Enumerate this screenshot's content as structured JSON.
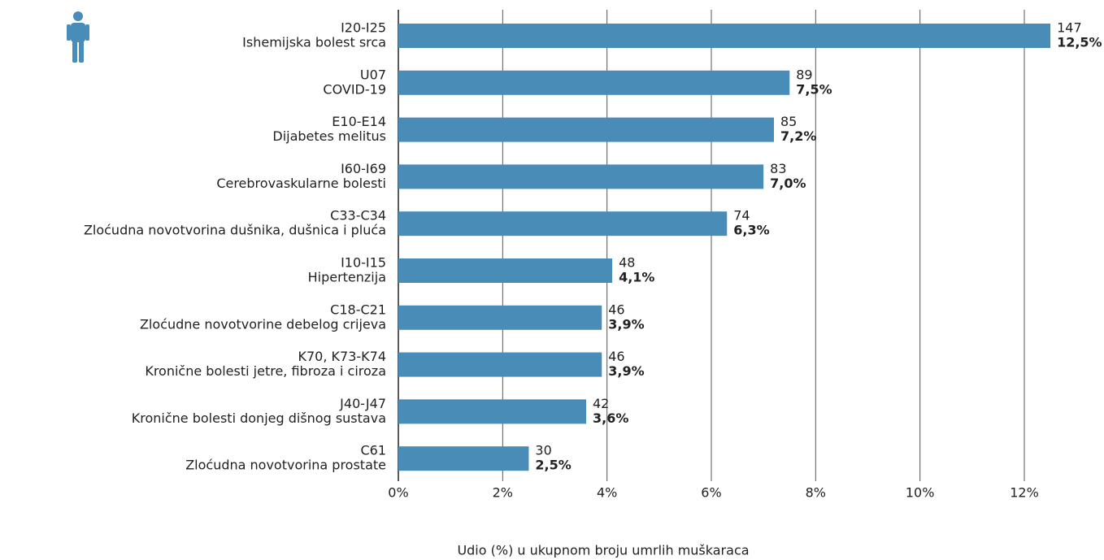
{
  "chart_data": {
    "type": "bar",
    "orientation": "horizontal",
    "xlabel": "Udio (%) u ukupnom broju umrlih muškaraca",
    "categories": [
      [
        "I20-I25",
        "Ishemijska bolest srca"
      ],
      [
        "U07",
        "COVID-19"
      ],
      [
        "E10-E14",
        "Dijabetes melitus"
      ],
      [
        "I60-I69",
        "Cerebrovaskularne bolesti"
      ],
      [
        "C33-C34",
        "Zloćudna novotvorina dušnika, dušnica i pluća"
      ],
      [
        "I10-I15",
        "Hipertenzija"
      ],
      [
        "C18-C21",
        "Zloćudne novotvorine debelog crijeva"
      ],
      [
        "K70, K73-K74",
        "Kronične bolesti jetre, fibroza i ciroza"
      ],
      [
        "J40-J47",
        "Kronične bolesti donjeg dišnog sustava"
      ],
      [
        "C61",
        "Zloćudna novotvorina prostate"
      ]
    ],
    "values": [
      12.5,
      7.5,
      7.2,
      7.0,
      6.3,
      4.1,
      3.9,
      3.9,
      3.6,
      2.5
    ],
    "value_labels": [
      "12,5%",
      "7,5%",
      "7,2%",
      "7,0%",
      "6,3%",
      "4,1%",
      "3,9%",
      "3,9%",
      "3,6%",
      "2,5%"
    ],
    "counts": [
      147,
      89,
      85,
      83,
      74,
      48,
      46,
      46,
      42,
      30
    ],
    "color": "#4a8cb8",
    "xlim": [
      0,
      12
    ],
    "xticks": [
      {
        "value": 0,
        "label": "0%"
      },
      {
        "value": 2,
        "label": "2%"
      },
      {
        "value": 4,
        "label": "4%"
      },
      {
        "value": 6,
        "label": "6%"
      },
      {
        "value": 8,
        "label": "8%"
      },
      {
        "value": 10,
        "label": "10%"
      },
      {
        "value": 12,
        "label": "12%"
      }
    ],
    "grid": true
  }
}
